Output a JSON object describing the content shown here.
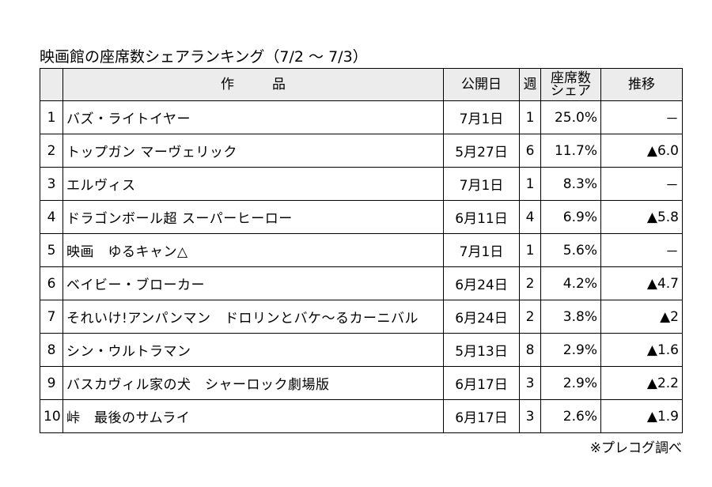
{
  "title": "映画館の座席数シェアランキング（7/2 ～ 7/3）",
  "headers": {
    "rank": "",
    "title": "作品",
    "release": "公開日",
    "week": "週",
    "share_line1": "座席数",
    "share_line2": "シェア",
    "trend": "推移"
  },
  "rows": [
    {
      "rank": "1",
      "title": "バズ・ライトイヤー",
      "release": "7月1日",
      "week": "1",
      "share": "25.0%",
      "trend": "－"
    },
    {
      "rank": "2",
      "title": "トップガン マーヴェリック",
      "release": "5月27日",
      "week": "6",
      "share": "11.7%",
      "trend": "▲6.0"
    },
    {
      "rank": "3",
      "title": "エルヴィス",
      "release": "7月1日",
      "week": "1",
      "share": "8.3%",
      "trend": "－"
    },
    {
      "rank": "4",
      "title": "ドラゴンボール超 スーパーヒーロー",
      "release": "6月11日",
      "week": "4",
      "share": "6.9%",
      "trend": "▲5.8"
    },
    {
      "rank": "5",
      "title": "映画　ゆるキャン△",
      "release": "7月1日",
      "week": "1",
      "share": "5.6%",
      "trend": "－"
    },
    {
      "rank": "6",
      "title": "ベイビー・ブローカー",
      "release": "6月24日",
      "week": "2",
      "share": "4.2%",
      "trend": "▲4.7"
    },
    {
      "rank": "7",
      "title": "それいけ!アンパンマン　ドロリンとバケ～るカーニバル",
      "release": "6月24日",
      "week": "2",
      "share": "3.8%",
      "trend": "▲2"
    },
    {
      "rank": "8",
      "title": "シン・ウルトラマン",
      "release": "5月13日",
      "week": "8",
      "share": "2.9%",
      "trend": "▲1.6"
    },
    {
      "rank": "9",
      "title": "バスカヴィル家の犬　シャーロック劇場版",
      "release": "6月17日",
      "week": "3",
      "share": "2.9%",
      "trend": "▲2.2"
    },
    {
      "rank": "10",
      "title": "峠　最後のサムライ",
      "release": "6月17日",
      "week": "3",
      "share": "2.6%",
      "trend": "▲1.9"
    }
  ],
  "source": "※プレコグ調べ"
}
